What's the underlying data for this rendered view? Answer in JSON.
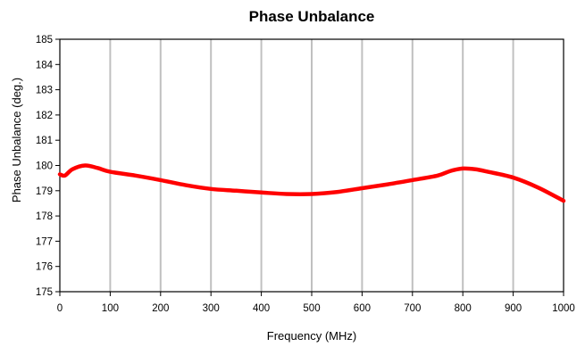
{
  "chart_data": {
    "type": "line",
    "title": "Phase Unbalance",
    "xlabel": "Frequency (MHz)",
    "ylabel": "Phase Unbalance (deg.)",
    "xlim": [
      0,
      1000
    ],
    "ylim": [
      175,
      185
    ],
    "x_ticks": [
      0,
      100,
      200,
      300,
      400,
      500,
      600,
      700,
      800,
      900,
      1000
    ],
    "y_ticks": [
      175,
      176,
      177,
      178,
      179,
      180,
      181,
      182,
      183,
      184,
      185
    ],
    "grid": "vertical",
    "series": [
      {
        "color": "#ff0000",
        "x": [
          0,
          10,
          25,
          50,
          75,
          100,
          150,
          200,
          250,
          300,
          350,
          400,
          450,
          500,
          550,
          600,
          650,
          700,
          750,
          775,
          800,
          825,
          850,
          900,
          950,
          1000
        ],
        "y": [
          179.65,
          179.6,
          179.85,
          180.0,
          179.9,
          179.75,
          179.6,
          179.42,
          179.22,
          179.07,
          179.0,
          178.93,
          178.87,
          178.87,
          178.95,
          179.1,
          179.25,
          179.42,
          179.6,
          179.78,
          179.88,
          179.85,
          179.75,
          179.52,
          179.12,
          178.6
        ]
      }
    ]
  }
}
